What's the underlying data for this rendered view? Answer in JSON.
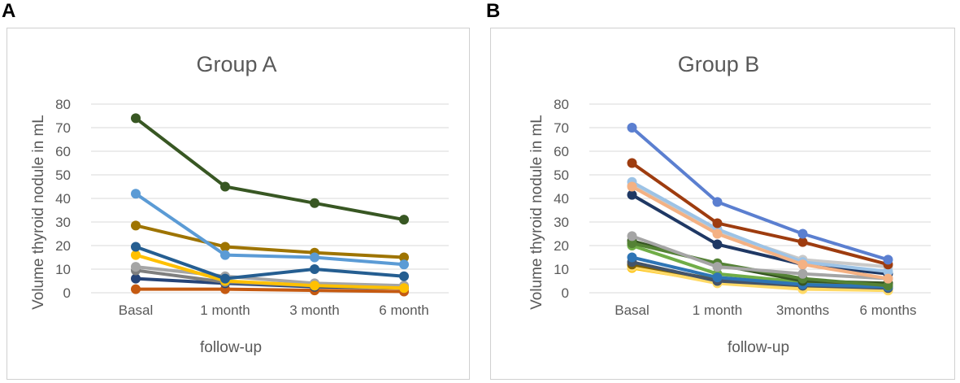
{
  "panels": [
    {
      "letter": "A"
    },
    {
      "letter": "B"
    }
  ],
  "chart_data": [
    {
      "type": "line",
      "title": "Group A",
      "xlabel": "follow-up",
      "ylabel": "Volume thyroid nodule in mL",
      "categories": [
        "Basal",
        "1 month",
        "3 month",
        "6 month"
      ],
      "ylim": [
        0,
        80
      ],
      "yticks": [
        0,
        10,
        20,
        30,
        40,
        50,
        60,
        70,
        80
      ],
      "grid": true,
      "legend": "none",
      "series": [
        {
          "name": "series 1",
          "color": "#385723",
          "values": [
            74,
            45,
            38,
            31
          ]
        },
        {
          "name": "series 2",
          "color": "#5b9bd5",
          "values": [
            42,
            16,
            15,
            12
          ]
        },
        {
          "name": "series 3",
          "color": "#9e7400",
          "values": [
            28.5,
            19.5,
            17,
            15
          ]
        },
        {
          "name": "series 4",
          "color": "#255e91",
          "values": [
            19.5,
            6,
            10,
            7
          ]
        },
        {
          "name": "series 5",
          "color": "#ffc000",
          "values": [
            16,
            5,
            3,
            2
          ]
        },
        {
          "name": "series 6",
          "color": "#a5a5a5",
          "values": [
            11,
            7,
            4,
            3
          ]
        },
        {
          "name": "series 7",
          "color": "#7f7f7f",
          "values": [
            9.5,
            4.5,
            3,
            2
          ]
        },
        {
          "name": "series 8",
          "color": "#264478",
          "values": [
            6,
            4,
            2.5,
            2
          ]
        },
        {
          "name": "series 9",
          "color": "#c55a11",
          "values": [
            1.5,
            1.5,
            1,
            0.5
          ]
        }
      ]
    },
    {
      "type": "line",
      "title": "Group B",
      "xlabel": "follow-up",
      "ylabel": "Volume thyroid nodule in mL",
      "categories": [
        "Basal",
        "1 month",
        "3months",
        "6 months"
      ],
      "ylim": [
        0,
        80
      ],
      "yticks": [
        0,
        10,
        20,
        30,
        40,
        50,
        60,
        70,
        80
      ],
      "grid": true,
      "legend": "none",
      "series": [
        {
          "name": "series 1",
          "color": "#5b7fd0",
          "values": [
            70,
            38.5,
            25,
            14
          ]
        },
        {
          "name": "series 2",
          "color": "#9e3c0f",
          "values": [
            55,
            29.5,
            21.5,
            12
          ]
        },
        {
          "name": "series 3",
          "color": "#f4b183",
          "values": [
            45,
            25,
            12,
            6
          ]
        },
        {
          "name": "series 4",
          "color": "#9dc3e6",
          "values": [
            47,
            27,
            13,
            9
          ]
        },
        {
          "name": "series 5",
          "color": "#c9c9c9",
          "values": [
            45.5,
            26,
            14,
            11
          ]
        },
        {
          "name": "series 6",
          "color": "#1f3864",
          "values": [
            41.5,
            20.5,
            12,
            8
          ]
        },
        {
          "name": "series 7",
          "color": "#a5a5a5",
          "values": [
            24,
            11,
            8,
            6
          ]
        },
        {
          "name": "series 8",
          "color": "#548235",
          "values": [
            21,
            12.5,
            6,
            3
          ]
        },
        {
          "name": "series 9",
          "color": "#375623",
          "values": [
            22,
            12,
            5,
            4
          ]
        },
        {
          "name": "series 10",
          "color": "#2e75b6",
          "values": [
            15,
            6.5,
            3.5,
            2.5
          ]
        },
        {
          "name": "series 11",
          "color": "#44546a",
          "values": [
            13,
            5,
            3,
            2
          ]
        },
        {
          "name": "series 12",
          "color": "#7f6000",
          "values": [
            12,
            5.5,
            3,
            4
          ]
        },
        {
          "name": "series 13",
          "color": "#70ad47",
          "values": [
            20,
            8,
            4.5,
            3
          ]
        },
        {
          "name": "series 14",
          "color": "#ffd966",
          "values": [
            11,
            4,
            1.5,
            1
          ]
        },
        {
          "name": "series 15",
          "color": "#ffc000",
          "values": [
            10.5,
            4.5,
            2,
            1
          ]
        }
      ]
    }
  ]
}
